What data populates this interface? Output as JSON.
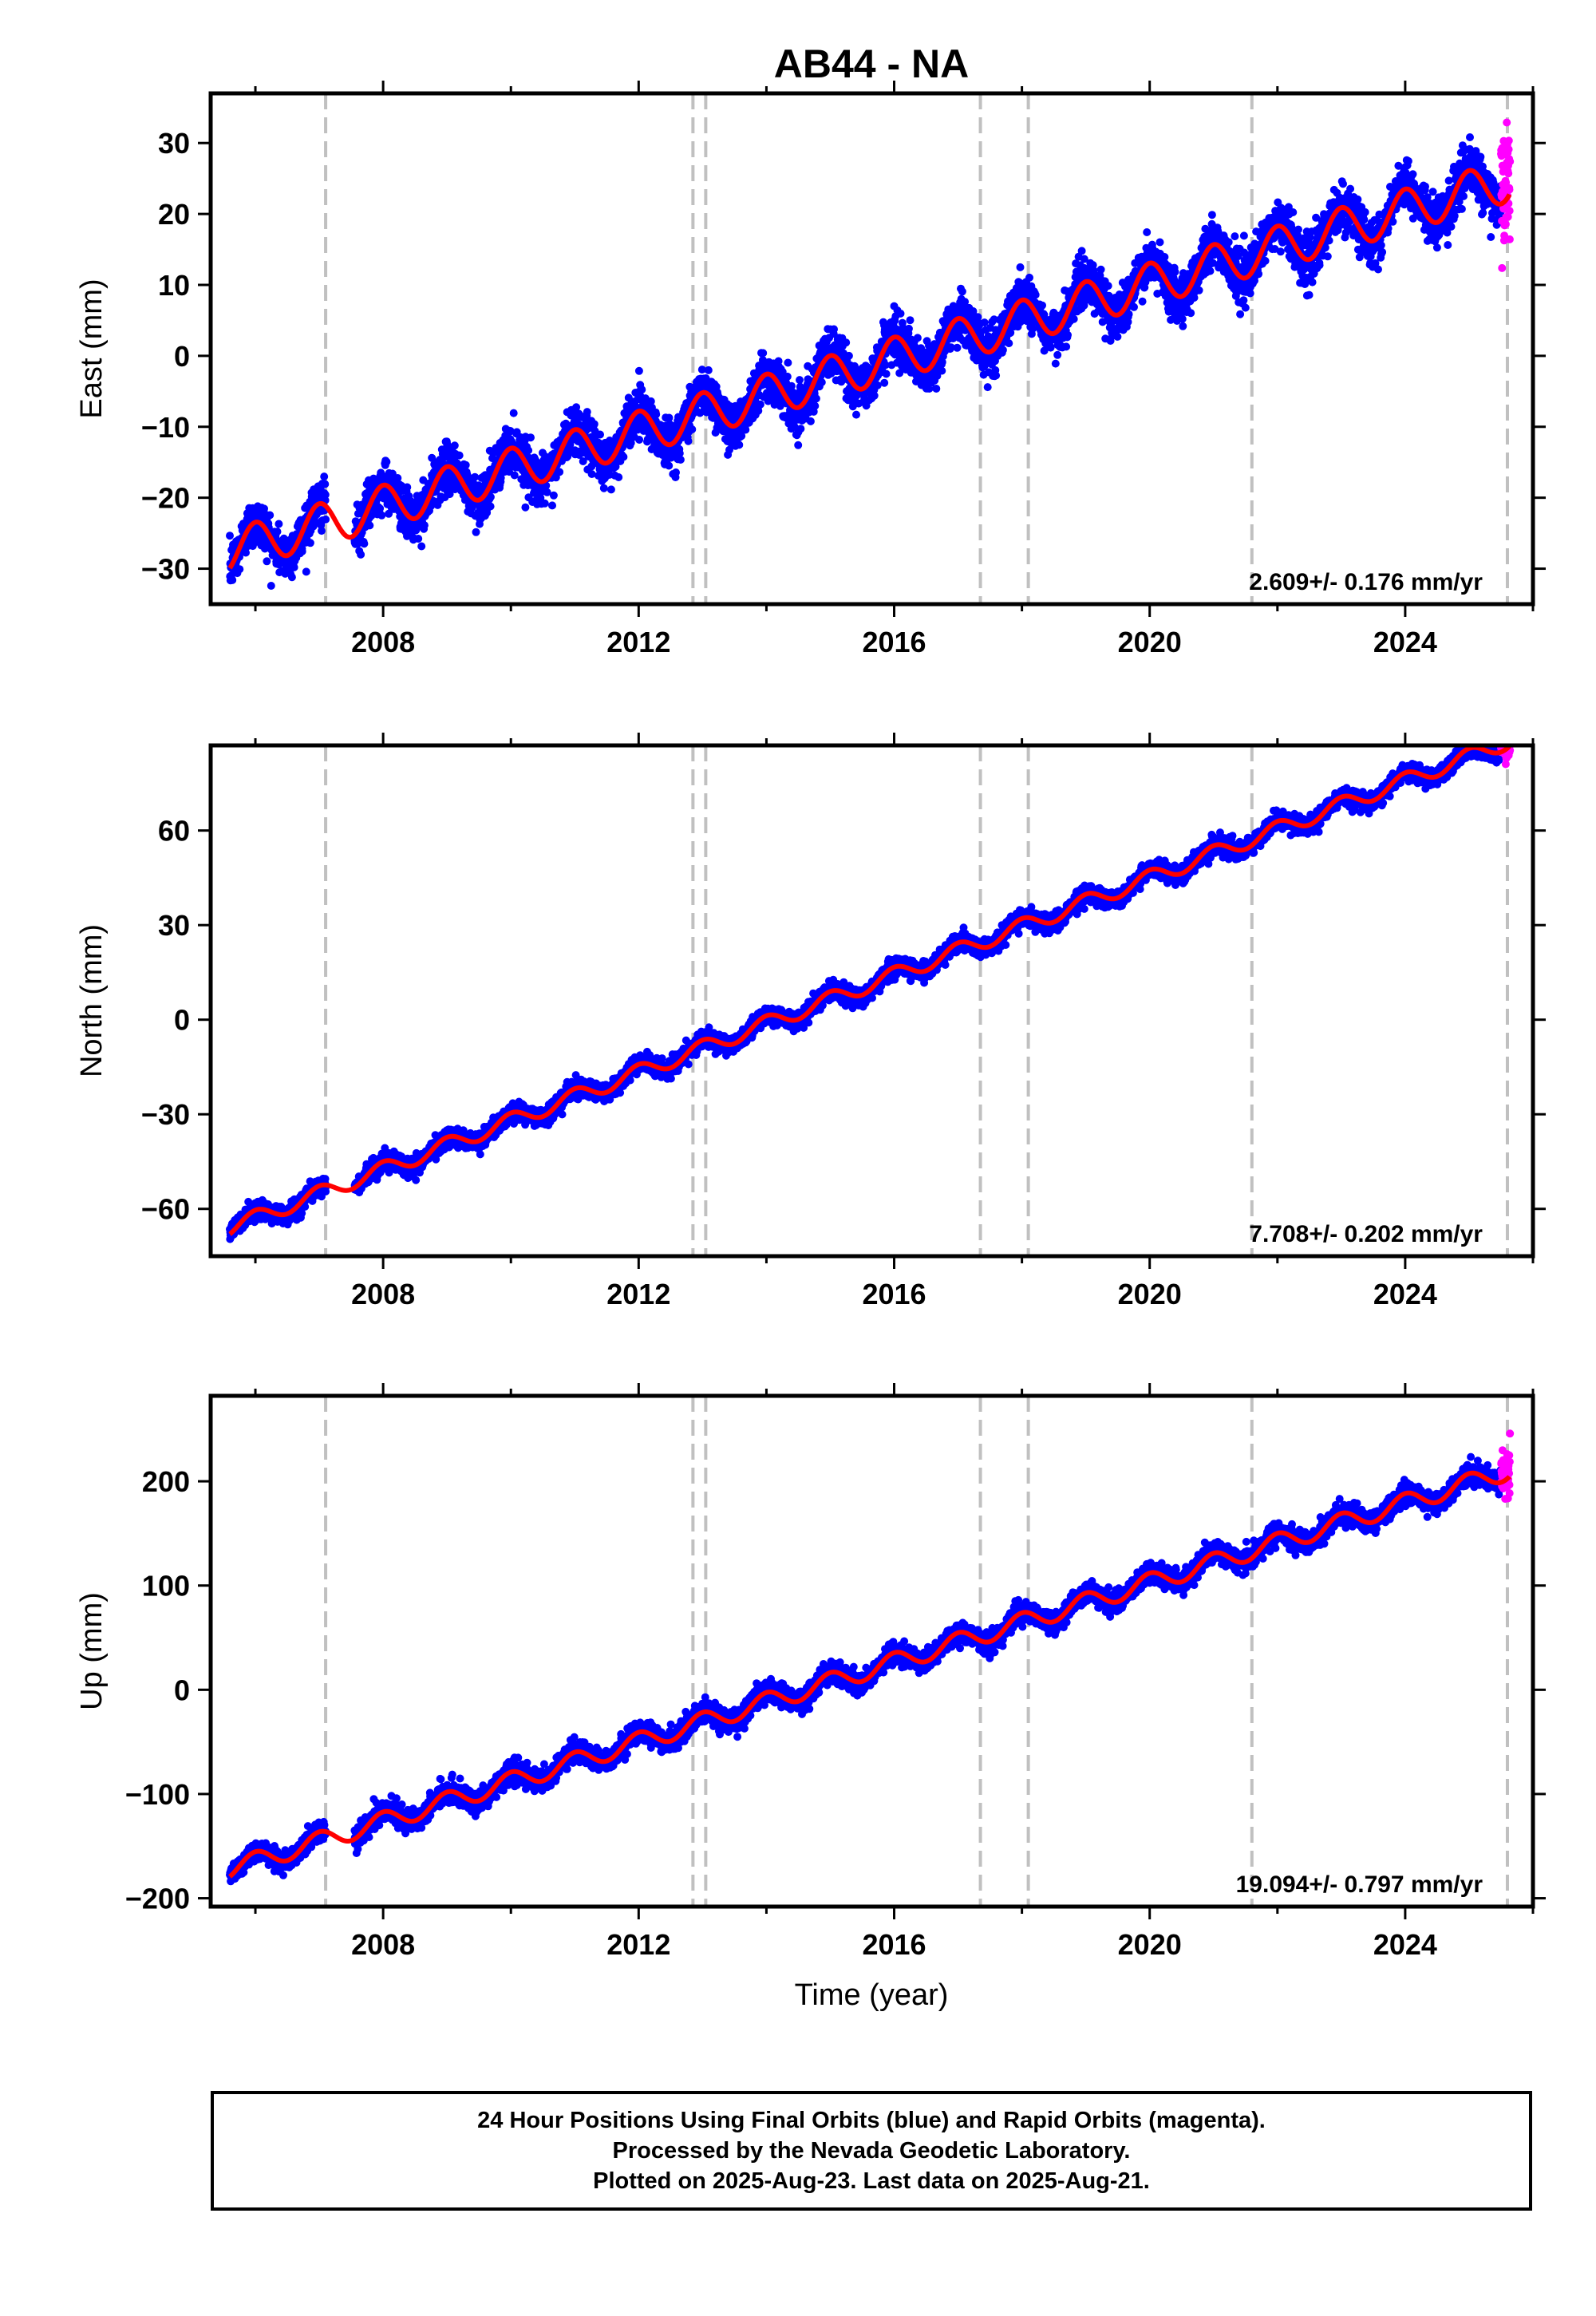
{
  "title": "AB44 - NA",
  "xlabel": "Time (year)",
  "footer": {
    "line1": "24 Hour Positions Using Final Orbits (blue) and Rapid Orbits (magenta).",
    "line2": "Processed by the Nevada Geodetic Laboratory.",
    "line3": "Plotted on 2025-Aug-23. Last data on 2025-Aug-21."
  },
  "colors": {
    "final_orbits": "#0000ff",
    "rapid_orbits": "#ff00ff",
    "model_fit": "#ff0000",
    "equipment_change_lines": "#c0c0c0"
  },
  "chart_data": [
    {
      "type": "scatter",
      "ylabel": "East (mm)",
      "xlim": [
        2005.3,
        2026.0
      ],
      "ylim": [
        -35,
        37
      ],
      "x_ticks": [
        "2008",
        "2012",
        "2016",
        "2020",
        "2024"
      ],
      "y_ticks": [
        -30,
        -20,
        -10,
        0,
        10,
        20,
        30
      ],
      "rate_label": "2.609+/- 0.176 mm/yr",
      "rate": 2.609,
      "fit": {
        "intercept_at_2005_6": -27.5,
        "annual_amplitude": 3.0
      },
      "final_span": [
        2005.6,
        2025.5
      ],
      "rapid_span": [
        2025.5,
        2025.64
      ],
      "equipment_changes": [
        2007.1,
        2012.85,
        2013.05,
        2017.35,
        2018.1,
        2021.6,
        2025.6
      ],
      "grid": false
    },
    {
      "type": "scatter",
      "ylabel": "North (mm)",
      "xlim": [
        2005.3,
        2026.0
      ],
      "ylim": [
        -75,
        87
      ],
      "x_ticks": [
        "2008",
        "2012",
        "2016",
        "2020",
        "2024"
      ],
      "y_ticks": [
        -60,
        -30,
        0,
        30,
        60
      ],
      "rate_label": "7.708+/- 0.202 mm/yr",
      "rate": 7.708,
      "fit": {
        "intercept_at_2005_6": -66.0,
        "annual_amplitude": 2.5
      },
      "final_span": [
        2005.6,
        2025.5
      ],
      "rapid_span": [
        2025.5,
        2025.64
      ],
      "equipment_changes": [
        2007.1,
        2012.85,
        2013.05,
        2017.35,
        2018.1,
        2021.6,
        2025.6
      ],
      "grid": false
    },
    {
      "type": "scatter",
      "ylabel": "Up (mm)",
      "xlim": [
        2005.3,
        2026.0
      ],
      "ylim": [
        -208,
        282
      ],
      "x_ticks": [
        "2008",
        "2012",
        "2016",
        "2020",
        "2024"
      ],
      "y_ticks": [
        -200,
        -100,
        0,
        100,
        200
      ],
      "rate_label": "19.094+/- 0.797 mm/yr",
      "rate": 19.094,
      "fit": {
        "intercept_at_2005_6": -172.0,
        "annual_amplitude": 9.0
      },
      "final_span": [
        2005.6,
        2025.5
      ],
      "rapid_span": [
        2025.5,
        2025.64
      ],
      "equipment_changes": [
        2007.1,
        2012.85,
        2013.05,
        2017.35,
        2018.1,
        2021.6,
        2025.6
      ],
      "grid": false
    }
  ]
}
